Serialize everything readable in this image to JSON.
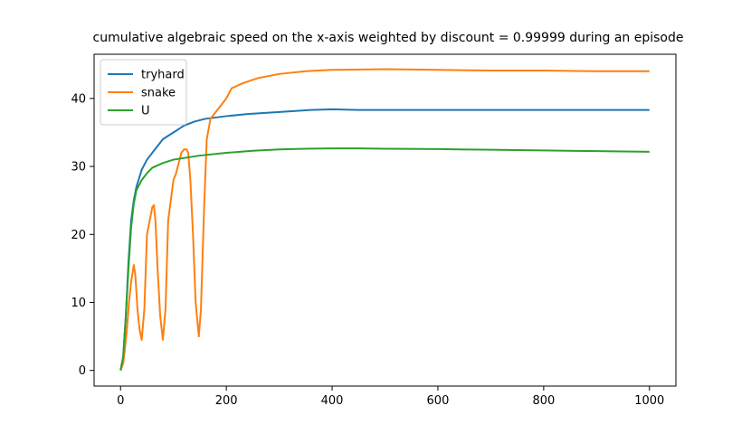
{
  "chart_data": {
    "type": "line",
    "title": "cumulative algebraic speed on the x-axis weighted by discount = 0.99999 during an episode",
    "xlabel": "",
    "ylabel": "",
    "xlim": [
      -50,
      1050
    ],
    "ylim": [
      -2.3,
      46.5
    ],
    "x_ticks": [
      0,
      200,
      400,
      600,
      800,
      1000
    ],
    "y_ticks": [
      0,
      10,
      20,
      30,
      40
    ],
    "grid": false,
    "legend_position": "top-left",
    "series": [
      {
        "name": "tryhard",
        "color": "#1f77b4",
        "points": [
          [
            0,
            0
          ],
          [
            5,
            2
          ],
          [
            10,
            8
          ],
          [
            15,
            16
          ],
          [
            20,
            22
          ],
          [
            25,
            25
          ],
          [
            30,
            27
          ],
          [
            40,
            29.5
          ],
          [
            50,
            31
          ],
          [
            60,
            32
          ],
          [
            70,
            33
          ],
          [
            80,
            34
          ],
          [
            100,
            35
          ],
          [
            120,
            36
          ],
          [
            140,
            36.6
          ],
          [
            160,
            37
          ],
          [
            180,
            37.2
          ],
          [
            200,
            37.4
          ],
          [
            240,
            37.7
          ],
          [
            280,
            37.9
          ],
          [
            320,
            38.1
          ],
          [
            360,
            38.3
          ],
          [
            400,
            38.4
          ],
          [
            450,
            38.3
          ],
          [
            500,
            38.3
          ],
          [
            600,
            38.3
          ],
          [
            700,
            38.3
          ],
          [
            800,
            38.3
          ],
          [
            900,
            38.3
          ],
          [
            1000,
            38.3
          ]
        ]
      },
      {
        "name": "snake",
        "color": "#ff7f0e",
        "points": [
          [
            0,
            0
          ],
          [
            5,
            1
          ],
          [
            8,
            3
          ],
          [
            12,
            6
          ],
          [
            16,
            10
          ],
          [
            20,
            13
          ],
          [
            25,
            15.5
          ],
          [
            28,
            14
          ],
          [
            32,
            9
          ],
          [
            36,
            6
          ],
          [
            40,
            4.5
          ],
          [
            45,
            9
          ],
          [
            50,
            20
          ],
          [
            55,
            22
          ],
          [
            60,
            24
          ],
          [
            63,
            24.3
          ],
          [
            66,
            22
          ],
          [
            70,
            15
          ],
          [
            75,
            8
          ],
          [
            80,
            4.5
          ],
          [
            85,
            9
          ],
          [
            90,
            22
          ],
          [
            95,
            25
          ],
          [
            100,
            28
          ],
          [
            105,
            29
          ],
          [
            110,
            30.5
          ],
          [
            115,
            32
          ],
          [
            120,
            32.5
          ],
          [
            125,
            32.5
          ],
          [
            128,
            32
          ],
          [
            132,
            28
          ],
          [
            137,
            20
          ],
          [
            142,
            10
          ],
          [
            148,
            5
          ],
          [
            152,
            9
          ],
          [
            158,
            24
          ],
          [
            163,
            34
          ],
          [
            170,
            37
          ],
          [
            180,
            38
          ],
          [
            190,
            39
          ],
          [
            200,
            40
          ],
          [
            210,
            41.5
          ],
          [
            230,
            42.2
          ],
          [
            260,
            43
          ],
          [
            300,
            43.6
          ],
          [
            350,
            44
          ],
          [
            400,
            44.2
          ],
          [
            500,
            44.3
          ],
          [
            600,
            44.2
          ],
          [
            700,
            44.1
          ],
          [
            800,
            44.1
          ],
          [
            900,
            44
          ],
          [
            1000,
            44
          ]
        ]
      },
      {
        "name": "U",
        "color": "#2ca02c",
        "points": [
          [
            0,
            0
          ],
          [
            5,
            2
          ],
          [
            10,
            8
          ],
          [
            15,
            15
          ],
          [
            20,
            21
          ],
          [
            25,
            24.5
          ],
          [
            30,
            26.5
          ],
          [
            40,
            28
          ],
          [
            50,
            29
          ],
          [
            60,
            29.8
          ],
          [
            80,
            30.5
          ],
          [
            100,
            31
          ],
          [
            150,
            31.6
          ],
          [
            200,
            32
          ],
          [
            250,
            32.3
          ],
          [
            300,
            32.5
          ],
          [
            350,
            32.6
          ],
          [
            400,
            32.65
          ],
          [
            450,
            32.65
          ],
          [
            500,
            32.6
          ],
          [
            600,
            32.55
          ],
          [
            700,
            32.45
          ],
          [
            800,
            32.35
          ],
          [
            900,
            32.25
          ],
          [
            1000,
            32.15
          ]
        ]
      }
    ]
  }
}
